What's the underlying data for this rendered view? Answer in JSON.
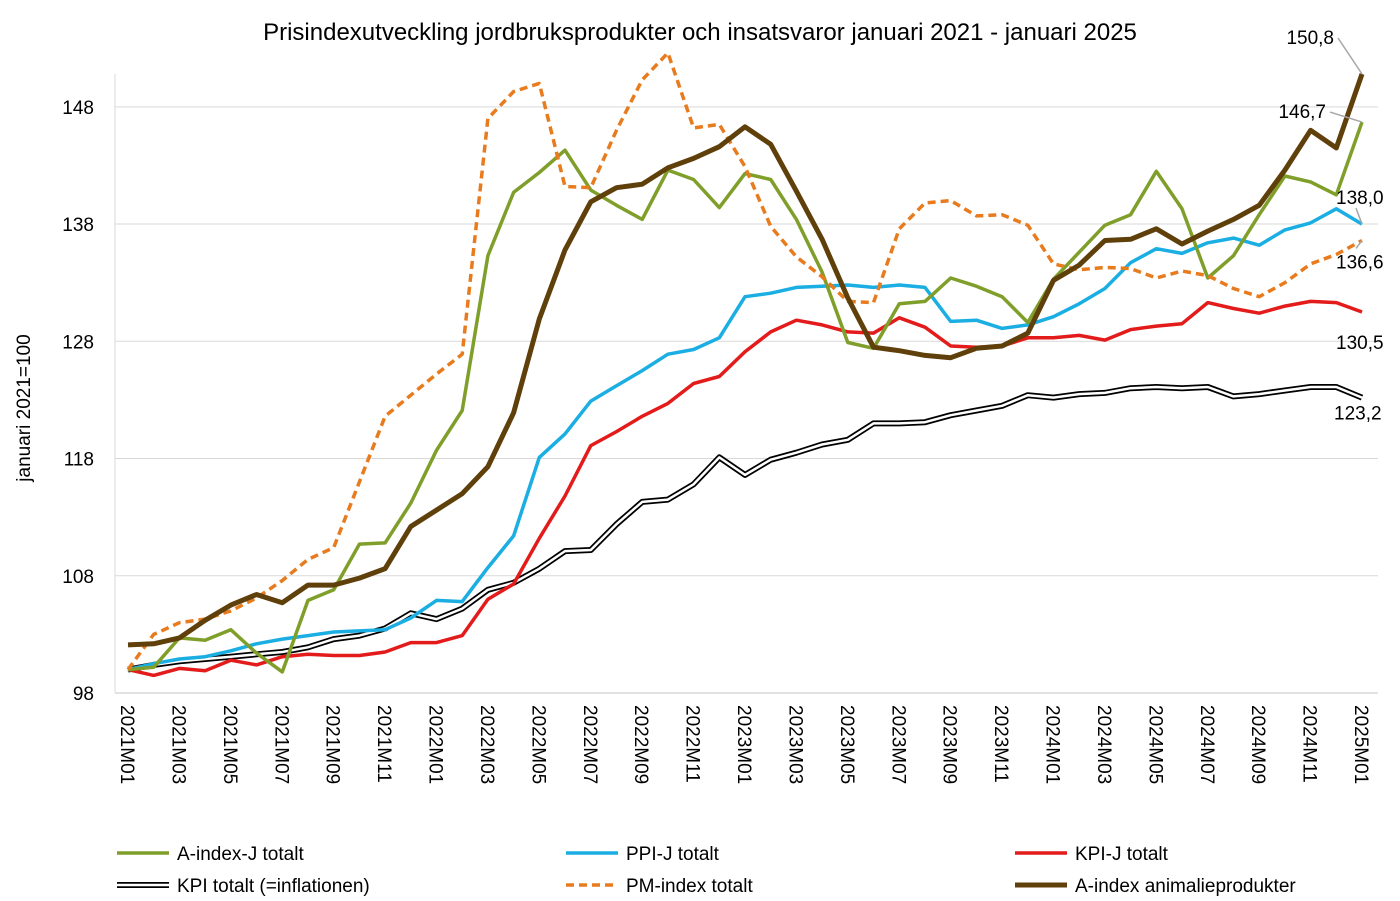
{
  "chart_data": {
    "type": "line",
    "title": "Prisindexutveckling jordbruksprodukter och insatsvaror januari 2021 - januari 2025",
    "xlabel": "",
    "ylabel": "januari 2021=100",
    "ylim": [
      98,
      150.8
    ],
    "yticks": [
      98,
      108,
      118,
      128,
      138,
      148
    ],
    "ytick_labels": [
      "98",
      "108",
      "118",
      "128",
      "138",
      "148"
    ],
    "grid": true,
    "legend_position": "bottom",
    "categories": [
      "2021M01",
      "2021M02",
      "2021M03",
      "2021M04",
      "2021M05",
      "2021M06",
      "2021M07",
      "2021M08",
      "2021M09",
      "2021M10",
      "2021M11",
      "2021M12",
      "2022M01",
      "2022M02",
      "2022M03",
      "2022M04",
      "2022M05",
      "2022M06",
      "2022M07",
      "2022M08",
      "2022M09",
      "2022M10",
      "2022M11",
      "2022M12",
      "2023M01",
      "2023M02",
      "2023M03",
      "2023M04",
      "2023M05",
      "2023M06",
      "2023M07",
      "2023M08",
      "2023M09",
      "2023M10",
      "2023M11",
      "2023M12",
      "2024M01",
      "2024M02",
      "2024M03",
      "2024M04",
      "2024M05",
      "2024M06",
      "2024M07",
      "2024M08",
      "2024M09",
      "2024M10",
      "2024M11",
      "2024M12",
      "2025M01"
    ],
    "tick_labels": [
      "2021M01",
      "2021M03",
      "2021M05",
      "2021M07",
      "2021M09",
      "2021M11",
      "2022M01",
      "2022M03",
      "2022M05",
      "2022M07",
      "2022M09",
      "2022M11",
      "2023M01",
      "2023M03",
      "2023M05",
      "2023M07",
      "2023M09",
      "2023M11",
      "2024M01",
      "2024M03",
      "2024M05",
      "2024M07",
      "2024M09",
      "2024M11",
      "2025M01"
    ],
    "series": [
      {
        "name": "A-index-J totalt",
        "color": "#7f9f2a",
        "style": "solid",
        "values": [
          100,
          100.2,
          102.7,
          102.5,
          103.4,
          101.4,
          99.8,
          105.9,
          106.8,
          110.7,
          110.8,
          114.2,
          118.7,
          122.1,
          135.3,
          140.7,
          142.4,
          144.3,
          140.9,
          139.6,
          138.4,
          142.6,
          141.8,
          139.4,
          142.3,
          141.8,
          138.4,
          133.9,
          127.9,
          127.4,
          131.2,
          131.4,
          133.4,
          132.7,
          131.8,
          129.6,
          133.3,
          135.6,
          137.9,
          138.8,
          142.5,
          139.3,
          133.4,
          135.3,
          138.8,
          142.1,
          141.6,
          140.5,
          146.7
        ]
      },
      {
        "name": "PPI-J totalt",
        "color": "#1aaee3",
        "style": "solid",
        "values": [
          100,
          100.5,
          100.9,
          101.1,
          101.6,
          102.2,
          102.6,
          102.9,
          103.2,
          103.3,
          103.4,
          104.4,
          105.9,
          105.8,
          108.7,
          111.4,
          118.1,
          120.1,
          122.9,
          124.2,
          125.5,
          126.9,
          127.3,
          128.3,
          131.8,
          132.1,
          132.6,
          132.7,
          132.8,
          132.6,
          132.8,
          132.6,
          129.7,
          129.8,
          129.1,
          129.4,
          130.1,
          131.2,
          132.5,
          134.7,
          135.9,
          135.5,
          136.4,
          136.8,
          136.2,
          137.5,
          138.1,
          139.3,
          138.0
        ]
      },
      {
        "name": "KPI-J totalt",
        "color": "#e31b1b",
        "style": "solid",
        "values": [
          100,
          99.5,
          100.1,
          99.9,
          100.8,
          100.4,
          101.1,
          101.3,
          101.2,
          101.2,
          101.5,
          102.3,
          102.3,
          102.9,
          106,
          107.3,
          111.2,
          114.8,
          119.1,
          120.3,
          121.6,
          122.7,
          124.4,
          125,
          127.1,
          128.8,
          129.8,
          129.4,
          128.8,
          128.7,
          130,
          129.2,
          127.6,
          127.5,
          127.6,
          128.3,
          128.3,
          128.5,
          128.1,
          129,
          129.3,
          129.5,
          131.3,
          130.8,
          130.4,
          131,
          131.4,
          131.3,
          130.5
        ]
      },
      {
        "name": "KPI totalt (=inflationen)",
        "color": "#000000",
        "style": "double",
        "values": [
          100,
          100.4,
          100.7,
          100.9,
          101.1,
          101.3,
          101.5,
          101.9,
          102.6,
          102.9,
          103.5,
          104.8,
          104.3,
          105.2,
          106.8,
          107.4,
          108.6,
          110.1,
          110.2,
          112.4,
          114.3,
          114.5,
          115.8,
          118.1,
          116.6,
          117.9,
          118.5,
          119.2,
          119.6,
          121,
          121,
          121.1,
          121.7,
          122.1,
          122.5,
          123.4,
          123.2,
          123.5,
          123.6,
          124,
          124.1,
          124,
          124.1,
          123.3,
          123.5,
          123.8,
          124.1,
          124.1,
          123.2
        ]
      },
      {
        "name": "PM-index totalt",
        "color": "#e87b1e",
        "style": "dashed",
        "values": [
          100,
          103,
          104,
          104.3,
          105,
          106.1,
          107.6,
          109.4,
          110.4,
          116,
          121.6,
          123.4,
          125.2,
          126.9,
          147,
          149.3,
          150,
          141.2,
          141.1,
          146,
          150.3,
          152.6,
          146.2,
          146.5,
          142.9,
          137.8,
          135.2,
          133.5,
          131.4,
          131.3,
          137.6,
          139.8,
          140,
          138.7,
          138.8,
          137.9,
          134.6,
          134.1,
          134.3,
          134.2,
          133.4,
          134,
          133.6,
          132.5,
          131.8,
          133,
          134.6,
          135.4,
          136.6
        ]
      },
      {
        "name": "A-index animalieprodukter",
        "color": "#5f3f0a",
        "style": "solid",
        "values": [
          102.1,
          102.2,
          102.7,
          104.2,
          105.5,
          106.4,
          105.7,
          107.2,
          107.2,
          107.8,
          108.6,
          112.2,
          113.6,
          115,
          117.3,
          121.9,
          129.9,
          135.8,
          139.9,
          141.1,
          141.4,
          142.8,
          143.6,
          144.6,
          146.3,
          144.8,
          140.8,
          136.7,
          131.7,
          127.5,
          127.2,
          126.8,
          126.6,
          127.4,
          127.6,
          128.7,
          133.2,
          134.5,
          136.6,
          136.7,
          137.6,
          136.3,
          137.4,
          138.4,
          139.6,
          142.6,
          146,
          144.5,
          150.8
        ]
      }
    ],
    "end_labels": [
      {
        "series": "A-index animalieprodukter",
        "text": "150,8"
      },
      {
        "series": "A-index-J totalt",
        "text": "146,7"
      },
      {
        "series": "PPI-J totalt",
        "text": "138,0"
      },
      {
        "series": "PM-index totalt",
        "text": "136,6"
      },
      {
        "series": "KPI-J totalt",
        "text": "130,5"
      },
      {
        "series": "KPI totalt (=inflationen)",
        "text": "123,2"
      }
    ]
  }
}
